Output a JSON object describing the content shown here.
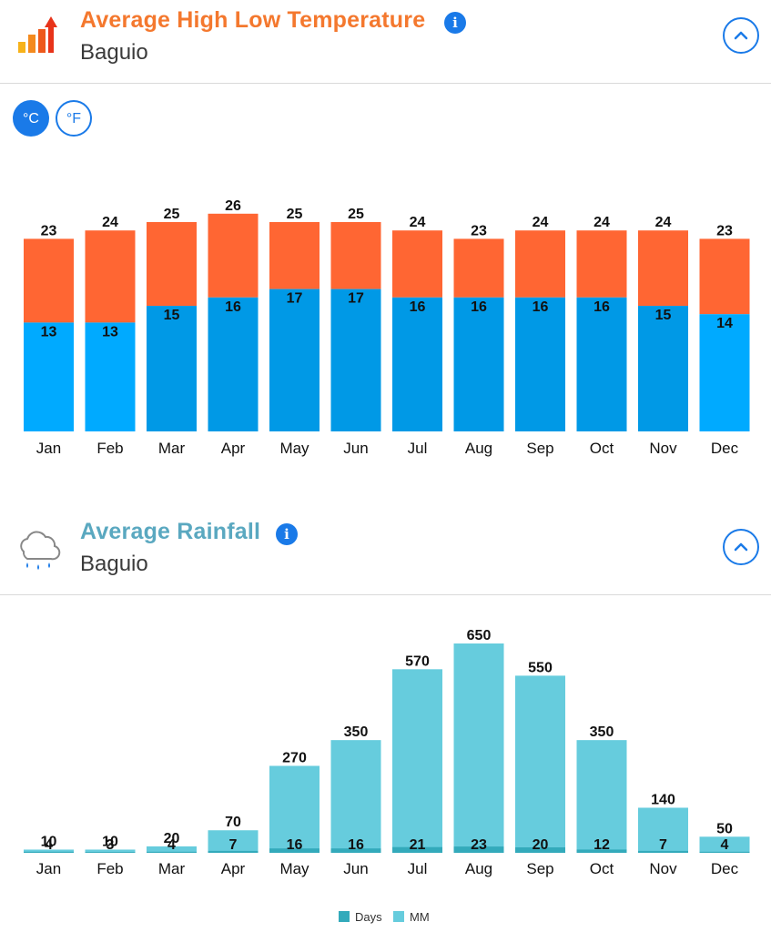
{
  "temperature_section": {
    "title": "Average High Low Temperature",
    "location": "Baguio",
    "info_label": "i",
    "units": {
      "celsius": "°C",
      "fahrenheit": "°F",
      "selected": "celsius"
    },
    "icon": "temperature-bars-icon"
  },
  "rainfall_section": {
    "title": "Average Rainfall",
    "location": "Baguio",
    "info_label": "i",
    "icon": "rain-cloud-icon"
  },
  "colors": {
    "accent": "#1a7ae8",
    "high": "#ff6633",
    "low": "#0099e6",
    "low_light": "#00aaff",
    "rain_mm": "#66ccdd",
    "rain_days": "#33aabb"
  },
  "chart_data": [
    {
      "type": "bar",
      "categories": [
        "Jan",
        "Feb",
        "Mar",
        "Apr",
        "May",
        "Jun",
        "Jul",
        "Aug",
        "Sep",
        "Oct",
        "Nov",
        "Dec"
      ],
      "series": [
        {
          "values": [
            23,
            24,
            25,
            26,
            25,
            25,
            24,
            23,
            24,
            24,
            24,
            23
          ]
        },
        {
          "values": [
            13,
            13,
            15,
            16,
            17,
            17,
            16,
            16,
            16,
            16,
            15,
            14
          ]
        }
      ],
      "ylim": [
        0,
        26
      ],
      "grid": false,
      "legend": "none"
    },
    {
      "type": "bar",
      "categories": [
        "Jan",
        "Feb",
        "Mar",
        "Apr",
        "May",
        "Jun",
        "Jul",
        "Aug",
        "Sep",
        "Oct",
        "Nov",
        "Dec"
      ],
      "series": [
        {
          "name": "Days",
          "values": [
            4,
            3,
            4,
            7,
            16,
            16,
            21,
            23,
            20,
            12,
            7,
            4
          ]
        },
        {
          "name": "MM",
          "values": [
            10,
            10,
            20,
            70,
            270,
            350,
            570,
            650,
            550,
            350,
            140,
            50
          ]
        }
      ],
      "ylim": [
        0,
        650
      ],
      "grid": false,
      "legend": "bottom-center"
    }
  ]
}
